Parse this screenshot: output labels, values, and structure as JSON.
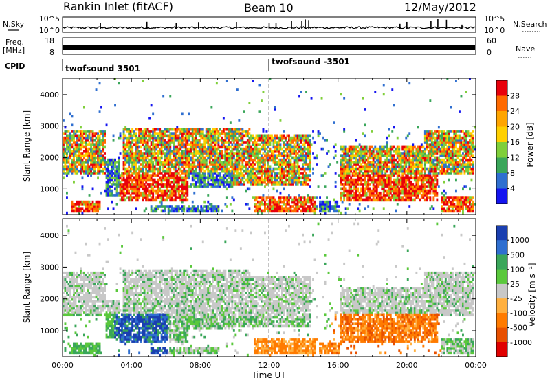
{
  "header": {
    "station": "Rankin Inlet (fitACF)",
    "beam": "Beam 10",
    "date": "12/May/2012"
  },
  "left_labels": {
    "nsky": "N.Sky",
    "freq_line1": "Freq.",
    "freq_line2": "[MHz]",
    "cpid": "CPID"
  },
  "right_labels": {
    "nsearch": "N.Search",
    "nave": "Nave"
  },
  "cpid_labels": [
    "twofsound 3501",
    "twofsound -3501"
  ],
  "chart_data": [
    {
      "type": "line",
      "name": "noise-panel",
      "left_ticks": [
        "10^5",
        "10^0"
      ],
      "right_ticks": [
        "10^5",
        "10^0"
      ],
      "spike_hours": [
        2.2,
        4.9,
        6.6,
        7.9,
        10.1,
        12.0,
        12.4,
        13.3,
        13.9,
        14.1,
        14.3,
        19.6,
        20.0,
        21.4,
        21.8,
        22.3,
        23.2
      ]
    },
    {
      "type": "line",
      "name": "freq-nave-panel",
      "left_ticks": [
        "18",
        "8"
      ],
      "right_ticks": [
        "60",
        "0"
      ],
      "freq_mhz_approx": 10,
      "nave_approx": 20
    },
    {
      "type": "heatmap",
      "name": "power-panel",
      "ylabel": "Slant Range [km]",
      "yticks": [
        1000,
        2000,
        3000,
        4000
      ],
      "ylim": [
        200,
        4500
      ],
      "xlim_hours": [
        0,
        24
      ],
      "colorbar_label": "Power [dB]",
      "colorbar_ticks": [
        "28",
        "24",
        "20",
        "16",
        "12",
        "8",
        "4"
      ],
      "colorbar_colors": [
        "#e8000b",
        "#ff6a00",
        "#ffa500",
        "#ffd000",
        "#7fcf3a",
        "#3aa65a",
        "#2f6fd0",
        "#1414f0"
      ]
    },
    {
      "type": "heatmap",
      "name": "velocity-panel",
      "ylabel": "Slant Range [km]",
      "yticks": [
        1000,
        2000,
        3000,
        4000
      ],
      "ylim": [
        200,
        4500
      ],
      "xlim_hours": [
        0,
        24
      ],
      "colorbar_label": "Velocity [m s⁻¹]",
      "colorbar_ticks": [
        "1000",
        "500",
        "100",
        "25",
        "-25",
        "-100",
        "-500",
        "-1000"
      ],
      "colorbar_colors": [
        "#1a3fb0",
        "#2f6fd0",
        "#3aa65a",
        "#5ac83c",
        "#c8c8c8",
        "#ffb040",
        "#ff7b00",
        "#e85000",
        "#e00000"
      ]
    }
  ],
  "xaxis": {
    "ticks": [
      "00:00",
      "04:00",
      "08:00",
      "12:00",
      "16:00",
      "20:00",
      "00:00"
    ],
    "label": "Time UT"
  }
}
